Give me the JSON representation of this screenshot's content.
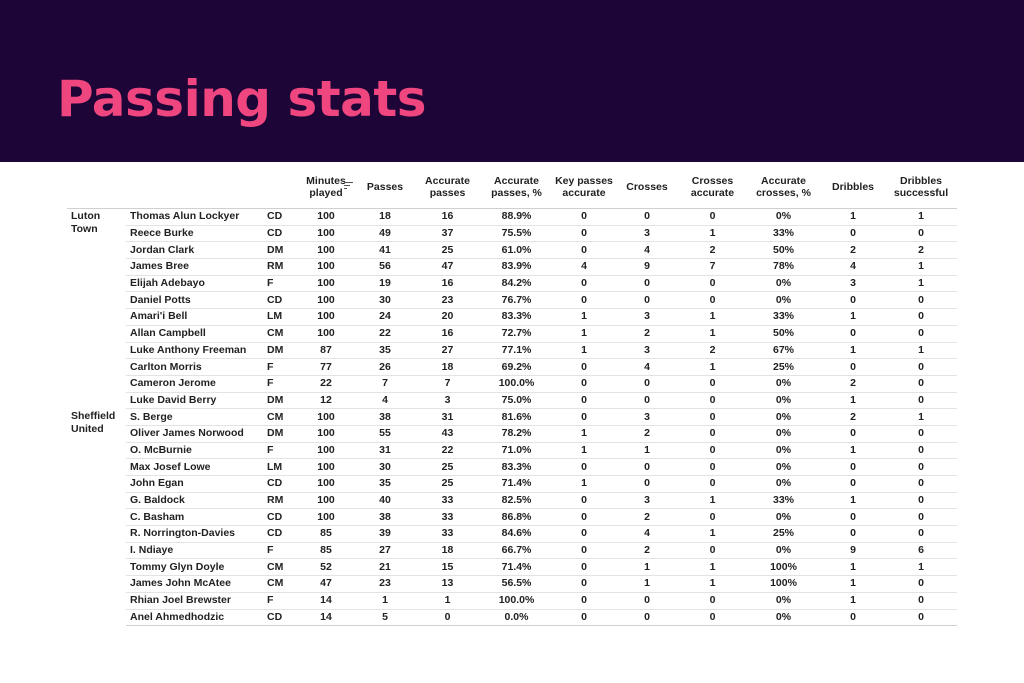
{
  "title": "Passing stats",
  "colors": {
    "banner_bg": "#1e0538",
    "title": "#f0467f"
  },
  "columns": [
    "Minutes played",
    "Passes",
    "Accurate passes",
    "Accurate passes, %",
    "Key passes accurate",
    "Crosses",
    "Crosses accurate",
    "Accurate crosses, %",
    "Dribbles",
    "Dribbles successful"
  ],
  "sort_icon": "sort-descending-icon",
  "teams": [
    {
      "name": "Luton Town",
      "players": [
        [
          "Thomas Alun Lockyer",
          "CD",
          "100",
          "18",
          "16",
          "88.9%",
          "0",
          "0",
          "0",
          "0%",
          "1",
          "1"
        ],
        [
          "Reece Burke",
          "CD",
          "100",
          "49",
          "37",
          "75.5%",
          "0",
          "3",
          "1",
          "33%",
          "0",
          "0"
        ],
        [
          "Jordan Clark",
          "DM",
          "100",
          "41",
          "25",
          "61.0%",
          "0",
          "4",
          "2",
          "50%",
          "2",
          "2"
        ],
        [
          "James Bree",
          "RM",
          "100",
          "56",
          "47",
          "83.9%",
          "4",
          "9",
          "7",
          "78%",
          "4",
          "1"
        ],
        [
          "Elijah Adebayo",
          "F",
          "100",
          "19",
          "16",
          "84.2%",
          "0",
          "0",
          "0",
          "0%",
          "3",
          "1"
        ],
        [
          "Daniel Potts",
          "CD",
          "100",
          "30",
          "23",
          "76.7%",
          "0",
          "0",
          "0",
          "0%",
          "0",
          "0"
        ],
        [
          "Amari'i Bell",
          "LM",
          "100",
          "24",
          "20",
          "83.3%",
          "1",
          "3",
          "1",
          "33%",
          "1",
          "0"
        ],
        [
          "Allan Campbell",
          "CM",
          "100",
          "22",
          "16",
          "72.7%",
          "1",
          "2",
          "1",
          "50%",
          "0",
          "0"
        ],
        [
          "Luke Anthony Freeman",
          "DM",
          "87",
          "35",
          "27",
          "77.1%",
          "1",
          "3",
          "2",
          "67%",
          "1",
          "1"
        ],
        [
          "Carlton Morris",
          "F",
          "77",
          "26",
          "18",
          "69.2%",
          "0",
          "4",
          "1",
          "25%",
          "0",
          "0"
        ],
        [
          "Cameron Jerome",
          "F",
          "22",
          "7",
          "7",
          "100.0%",
          "0",
          "0",
          "0",
          "0%",
          "2",
          "0"
        ],
        [
          "Luke David Berry",
          "DM",
          "12",
          "4",
          "3",
          "75.0%",
          "0",
          "0",
          "0",
          "0%",
          "1",
          "0"
        ]
      ]
    },
    {
      "name": "Sheffield United",
      "players": [
        [
          "S. Berge",
          "CM",
          "100",
          "38",
          "31",
          "81.6%",
          "0",
          "3",
          "0",
          "0%",
          "2",
          "1"
        ],
        [
          "Oliver James Norwood",
          "DM",
          "100",
          "55",
          "43",
          "78.2%",
          "1",
          "2",
          "0",
          "0%",
          "0",
          "0"
        ],
        [
          "O. McBurnie",
          "F",
          "100",
          "31",
          "22",
          "71.0%",
          "1",
          "1",
          "0",
          "0%",
          "1",
          "0"
        ],
        [
          "Max Josef Lowe",
          "LM",
          "100",
          "30",
          "25",
          "83.3%",
          "0",
          "0",
          "0",
          "0%",
          "0",
          "0"
        ],
        [
          "John Egan",
          "CD",
          "100",
          "35",
          "25",
          "71.4%",
          "1",
          "0",
          "0",
          "0%",
          "0",
          "0"
        ],
        [
          "G. Baldock",
          "RM",
          "100",
          "40",
          "33",
          "82.5%",
          "0",
          "3",
          "1",
          "33%",
          "1",
          "0"
        ],
        [
          "C. Basham",
          "CD",
          "100",
          "38",
          "33",
          "86.8%",
          "0",
          "2",
          "0",
          "0%",
          "0",
          "0"
        ],
        [
          "R. Norrington-Davies",
          "CD",
          "85",
          "39",
          "33",
          "84.6%",
          "0",
          "4",
          "1",
          "25%",
          "0",
          "0"
        ],
        [
          "I. Ndiaye",
          "F",
          "85",
          "27",
          "18",
          "66.7%",
          "0",
          "2",
          "0",
          "0%",
          "9",
          "6"
        ],
        [
          "Tommy Glyn Doyle",
          "CM",
          "52",
          "21",
          "15",
          "71.4%",
          "0",
          "1",
          "1",
          "100%",
          "1",
          "1"
        ],
        [
          "James John McAtee",
          "CM",
          "47",
          "23",
          "13",
          "56.5%",
          "0",
          "1",
          "1",
          "100%",
          "1",
          "0"
        ],
        [
          "Rhian Joel Brewster",
          "F",
          "14",
          "1",
          "1",
          "100.0%",
          "0",
          "0",
          "0",
          "0%",
          "1",
          "0"
        ],
        [
          "Anel Ahmedhodzic",
          "CD",
          "14",
          "5",
          "0",
          "0.0%",
          "0",
          "0",
          "0",
          "0%",
          "0",
          "0"
        ]
      ]
    }
  ]
}
